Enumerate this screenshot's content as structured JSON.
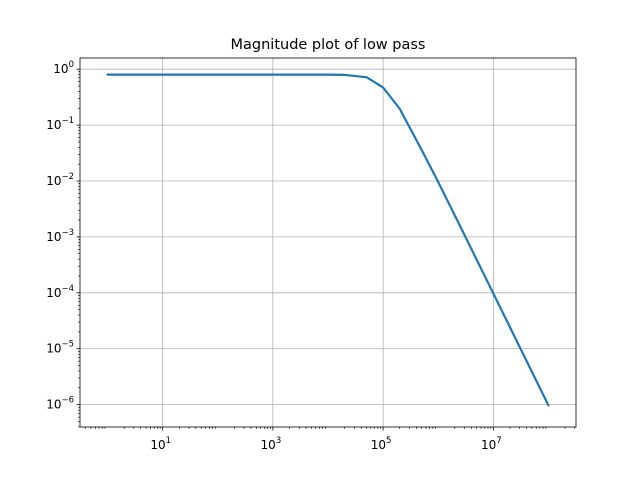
{
  "chart_data": {
    "type": "line",
    "title": "Magnitude plot of low pass",
    "xlabel": "",
    "ylabel": "",
    "xscale": "log",
    "yscale": "log",
    "xlim_decades": [
      -0.5,
      8.5
    ],
    "ylim_decades": [
      -6.4,
      0.2
    ],
    "grid": true,
    "x_ticks": [
      {
        "exp": 1,
        "label_base": "10",
        "label_exp": "1"
      },
      {
        "exp": 3,
        "label_base": "10",
        "label_exp": "3"
      },
      {
        "exp": 5,
        "label_base": "10",
        "label_exp": "5"
      },
      {
        "exp": 7,
        "label_base": "10",
        "label_exp": "7"
      }
    ],
    "y_ticks": [
      {
        "exp": 0,
        "label_base": "10",
        "label_exp": "0"
      },
      {
        "exp": -1,
        "label_base": "10",
        "label_exp": "−1"
      },
      {
        "exp": -2,
        "label_base": "10",
        "label_exp": "−2"
      },
      {
        "exp": -3,
        "label_base": "10",
        "label_exp": "−3"
      },
      {
        "exp": -4,
        "label_base": "10",
        "label_exp": "−4"
      },
      {
        "exp": -5,
        "label_base": "10",
        "label_exp": "−5"
      },
      {
        "exp": -6,
        "label_base": "10",
        "label_exp": "−6"
      }
    ],
    "series": [
      {
        "color": "#1f77b4",
        "x": [
          1,
          10,
          100,
          1000,
          10000,
          20000,
          50000,
          100000,
          200000,
          500000,
          1000000,
          3000000,
          10000000,
          30000000,
          100000000
        ],
        "y": [
          0.8,
          0.8,
          0.8,
          0.8,
          0.8,
          0.79,
          0.72,
          0.47,
          0.196,
          0.036,
          0.0096,
          0.00108,
          9.75e-05,
          1.08e-05,
          9.7e-07
        ]
      }
    ]
  }
}
